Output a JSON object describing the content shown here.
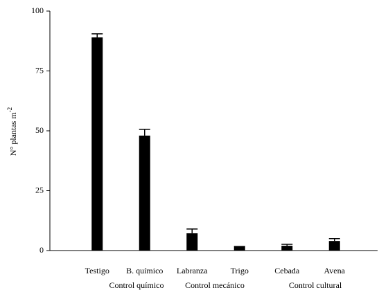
{
  "chart_data": {
    "type": "bar",
    "y_label": "N° plantas m",
    "y_label_superscript": "-2",
    "categories": [
      "Testigo",
      "B. químico",
      "Labranza",
      "Trigo",
      "Cebada",
      "Avena"
    ],
    "values": [
      89,
      48,
      7.2,
      1.6,
      2,
      4
    ],
    "errors": [
      1.5,
      2.6,
      1.8,
      0.1,
      0.6,
      1
    ],
    "color": "#000000",
    "group_labels": [
      "Control químico",
      "Control mecánico",
      "Control cultural"
    ],
    "ylim": [
      0,
      100
    ],
    "yticks": [
      0,
      25,
      50,
      75,
      100
    ],
    "grid": false
  }
}
